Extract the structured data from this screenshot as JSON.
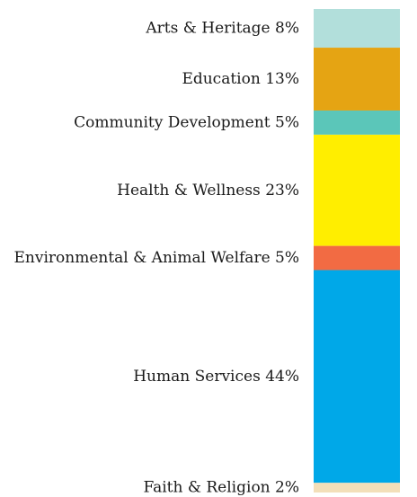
{
  "chart_data": {
    "type": "stacked-bar",
    "categories": [
      "Arts & Heritage",
      "Education",
      "Community Development",
      "Health & Wellness",
      "Environmental & Animal Welfare",
      "Human Services",
      "Faith & Religion"
    ],
    "values": [
      8,
      13,
      5,
      23,
      5,
      44,
      2
    ],
    "value_labels": [
      "8%",
      "13%",
      "5%",
      "23%",
      "5%",
      "44%",
      "2%"
    ],
    "colors": [
      "#b2dfdb",
      "#e5a413",
      "#5bc6b9",
      "#ffee00",
      "#f26b43",
      "#00a8e8",
      "#f3dfb9"
    ]
  }
}
